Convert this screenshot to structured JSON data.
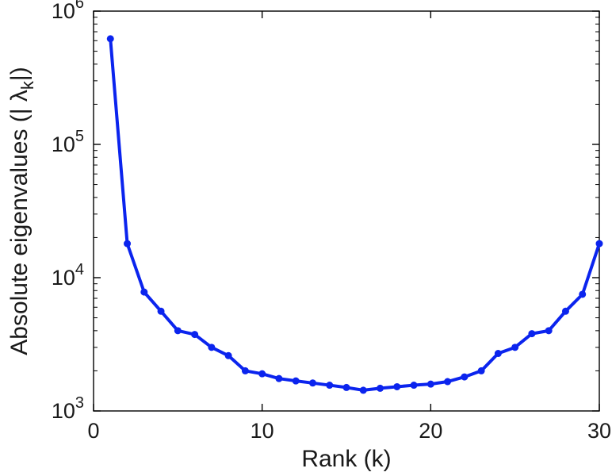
{
  "chart_data": {
    "type": "line",
    "title": "",
    "xlabel": "Rank (k)",
    "ylabel": "Absolute eigenvalues (|λ_k|)",
    "ylabel_parts": {
      "prefix": "Absolute eigenvalues (|  ",
      "symbol": "λ",
      "subscript": "k",
      "suffix": "|)"
    },
    "yscale": "log",
    "grid": false,
    "legend": "none",
    "xlim": [
      0,
      30
    ],
    "ylim": [
      1000,
      1000000
    ],
    "ylim_log10": [
      3,
      6
    ],
    "xticks": [
      0,
      10,
      20,
      30
    ],
    "ytick_exponents": [
      3,
      4,
      5,
      6
    ],
    "line_color": "#0b24ee",
    "marker": "dot",
    "x": [
      1,
      2,
      3,
      4,
      5,
      6,
      7,
      8,
      9,
      10,
      11,
      12,
      13,
      14,
      15,
      16,
      17,
      18,
      19,
      20,
      21,
      22,
      23,
      24,
      25,
      26,
      27,
      28,
      29,
      30
    ],
    "y": [
      620000,
      18000,
      7800,
      5600,
      4000,
      3750,
      3000,
      2600,
      2000,
      1900,
      1750,
      1680,
      1620,
      1560,
      1500,
      1430,
      1480,
      1520,
      1560,
      1590,
      1660,
      1800,
      2000,
      2700,
      3000,
      3800,
      4000,
      5600,
      7500,
      18000
    ]
  }
}
